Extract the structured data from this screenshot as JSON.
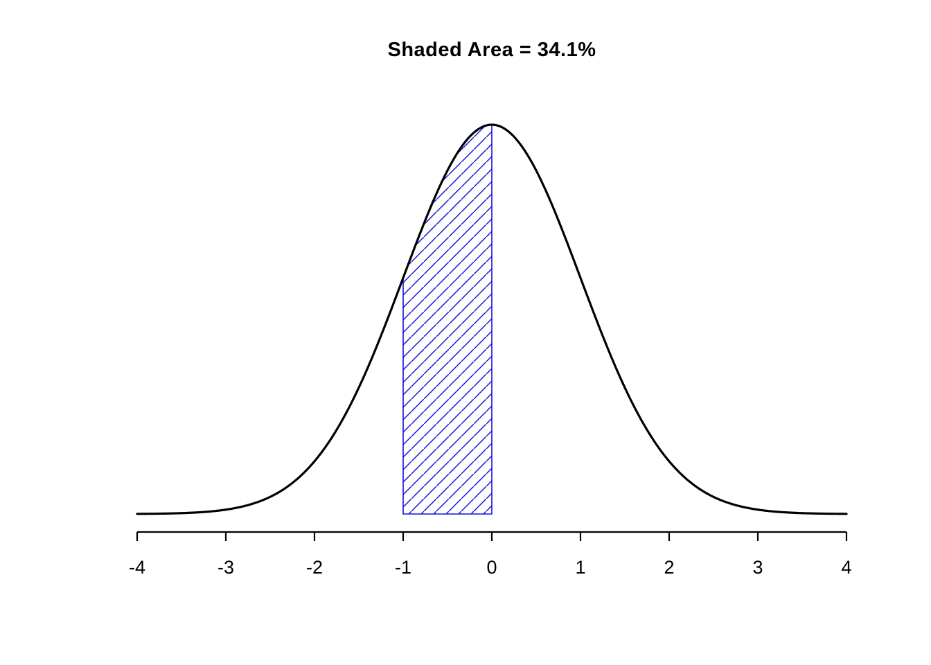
{
  "title": "Shaded Area = 34.1%",
  "chart_data": {
    "type": "area",
    "title": "Shaded Area = 34.1%",
    "distribution": "standard_normal",
    "mean": 0,
    "sd": 1,
    "xlim": [
      -4,
      4
    ],
    "x_ticks": [
      -4,
      -3,
      -2,
      -1,
      0,
      1,
      2,
      3,
      4
    ],
    "x_tick_labels": [
      "-4",
      "-3",
      "-2",
      "-1",
      "0",
      "1",
      "2",
      "3",
      "4"
    ],
    "peak_density": 0.3989,
    "shade_region": {
      "from": -1,
      "to": 0,
      "area_fraction": 0.341,
      "area_label": "34.1%"
    },
    "curve_color": "#000000",
    "shade_color": "#1212dd",
    "axis_color": "#000000",
    "background_color": "#ffffff",
    "grid": false,
    "legend": false,
    "hatch": true,
    "hatch_angle_deg": 45
  }
}
